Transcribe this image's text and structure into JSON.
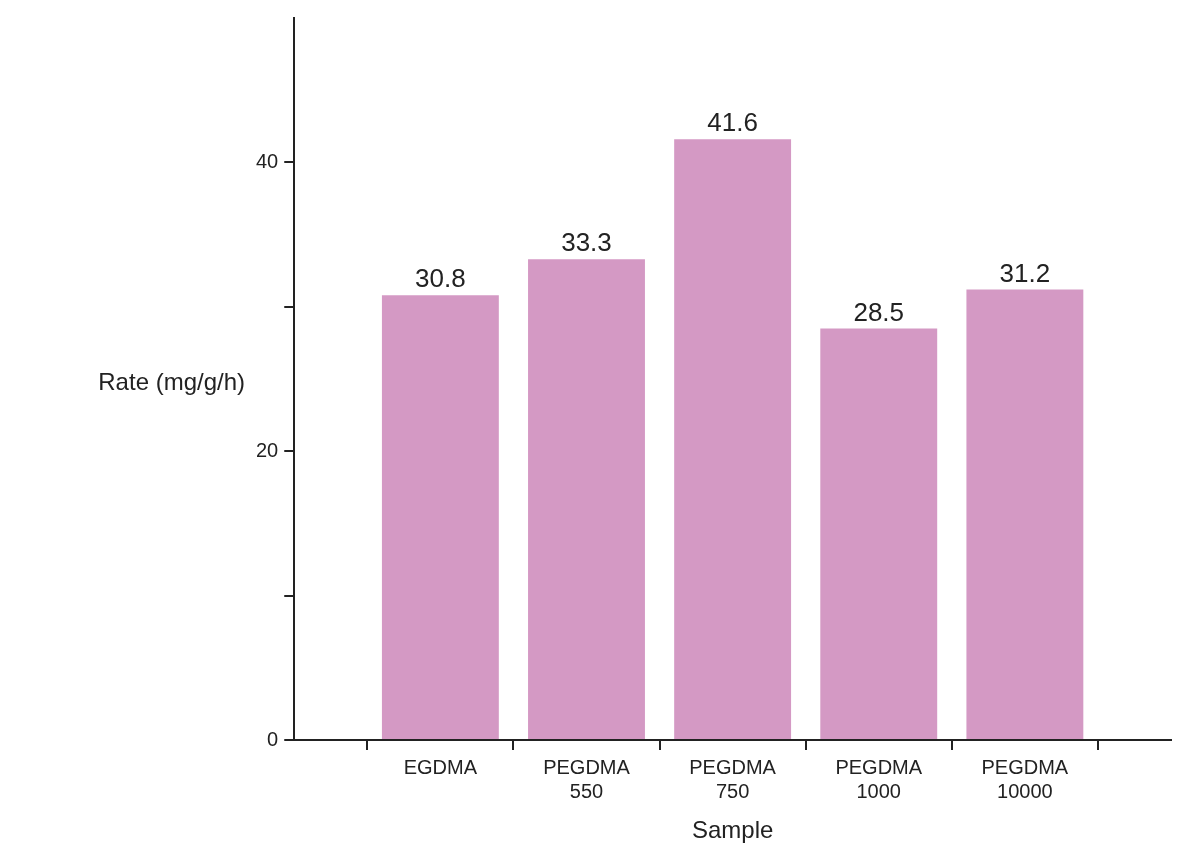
{
  "chart_data": {
    "type": "bar",
    "xlabel": "Sample",
    "ylabel": "Rate (mg/g/h)",
    "categories": [
      "EGDMA",
      "PEGDMA 550",
      "PEGDMA 750",
      "PEGDMA 1000",
      "PEGDMA 10000"
    ],
    "values": [
      30.8,
      33.3,
      41.6,
      28.5,
      31.2
    ],
    "color": "#d499c4",
    "ylim": [
      0,
      50
    ],
    "yticks": [
      0,
      {
        "value": 10,
        "label": null
      },
      20,
      {
        "value": 30,
        "label": null
      },
      40
    ],
    "grid": false,
    "legend": false,
    "data_labels": true
  }
}
